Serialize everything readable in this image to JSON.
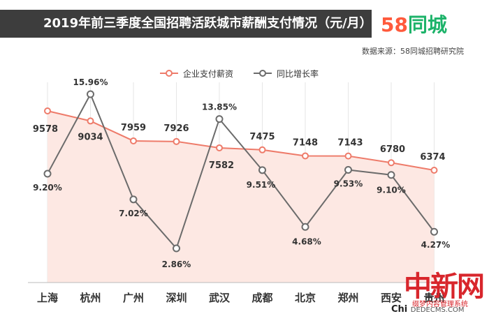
{
  "title": "2019年前三季度全国招聘活跃城市薪酬支付情况（元/月）",
  "logo": {
    "number": "58",
    "text": "同城"
  },
  "source": "数据来源：58同城招聘研究院",
  "colors": {
    "salary": "#ee7b6a",
    "growth": "#6b6b6b",
    "fill": "#fde8e3",
    "titlebar": "#3d3d3d"
  },
  "chart_data": {
    "type": "line",
    "categories": [
      "上海",
      "杭州",
      "广州",
      "深圳",
      "武汉",
      "成都",
      "北京",
      "郑州",
      "西安",
      "贵州"
    ],
    "series": [
      {
        "name": "企业支付薪资",
        "values": [
          9578,
          9034,
          7959,
          7926,
          7582,
          7475,
          7148,
          7143,
          6780,
          6374
        ],
        "labels": [
          "9578",
          "9034",
          "7959",
          "7926",
          "7582",
          "7475",
          "7148",
          "7143",
          "6780",
          "6374"
        ]
      },
      {
        "name": "同比增长率",
        "values": [
          9.2,
          15.96,
          7.02,
          2.86,
          13.85,
          9.51,
          4.68,
          9.53,
          9.1,
          4.27
        ],
        "labels": [
          "9.20%",
          "15.96%",
          "7.02%",
          "2.86%",
          "13.85%",
          "9.51%",
          "4.68%",
          "9.53%",
          "9.10%",
          "4.27%"
        ]
      }
    ],
    "grid": true,
    "legend": "top-center",
    "area_fill_series": "企业支付薪资"
  },
  "watermark": {
    "big": "中新网",
    "line1": "缀梦内容管理系统",
    "line2": "Chi",
    "line2b": "DEDECMS.COM"
  }
}
